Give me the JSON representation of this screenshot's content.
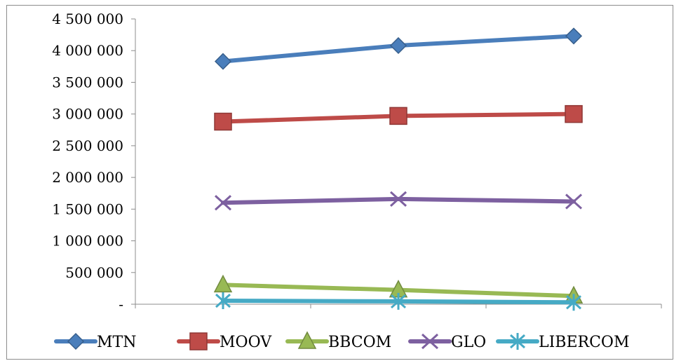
{
  "chart_data": {
    "type": "line",
    "categories": [
      "",
      "",
      ""
    ],
    "series": [
      {
        "name": "MTN",
        "values": [
          3830000,
          4080000,
          4230000
        ],
        "color": "#4a7ebb",
        "marker": "diamond"
      },
      {
        "name": "MOOV",
        "values": [
          2880000,
          2970000,
          3000000
        ],
        "color": "#be4b48",
        "marker": "square"
      },
      {
        "name": "BBCOM",
        "values": [
          305000,
          225000,
          130000
        ],
        "color": "#98b954",
        "marker": "triangle"
      },
      {
        "name": "GLO",
        "values": [
          1600000,
          1660000,
          1620000
        ],
        "color": "#7d60a0",
        "marker": "x"
      },
      {
        "name": "LIBERCOM",
        "values": [
          55000,
          45000,
          30000
        ],
        "color": "#46aac5",
        "marker": "star"
      }
    ],
    "ylim": [
      0,
      4500000
    ],
    "yticks": [
      0,
      500000,
      1000000,
      1500000,
      2000000,
      2500000,
      3000000,
      3500000,
      4000000,
      4500000
    ],
    "ytick_labels": [
      "-",
      "500 000",
      "1 000 000",
      "1 500 000",
      "2 000 000",
      "2 500 000",
      "3 000 000",
      "3 500 000",
      "4 000 000",
      "4 500 000"
    ],
    "legend": "bottom",
    "grid": false
  }
}
